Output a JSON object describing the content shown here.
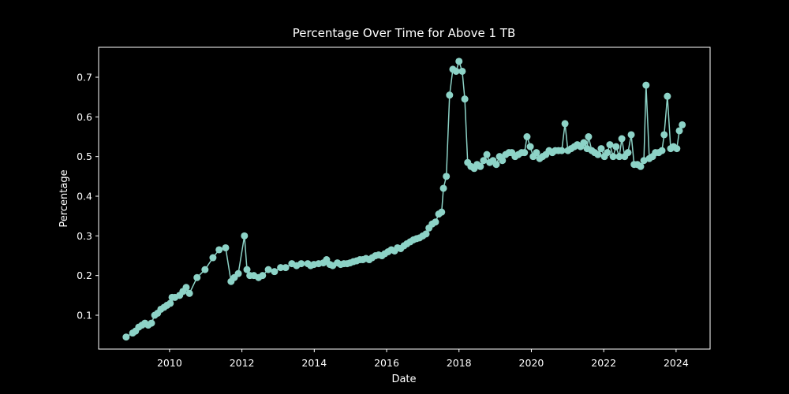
{
  "chart_data": {
    "type": "line",
    "title": "Percentage Over Time for Above 1 TB",
    "xlabel": "Date",
    "ylabel": "Percentage",
    "xlim": [
      2008.04,
      2024.94
    ],
    "xticks": [
      2010,
      2012,
      2014,
      2016,
      2018,
      2020,
      2022,
      2024
    ],
    "ylim": [
      0.0146,
      0.7755
    ],
    "yticks": [
      0.1,
      0.2,
      0.3,
      0.4,
      0.5,
      0.6,
      0.7
    ],
    "grid": false,
    "marker": "o",
    "series": [
      {
        "name": "Above 1 TB",
        "color": "#8dd3c7",
        "x": [
          2008.8,
          2008.98,
          2009.06,
          2009.15,
          2009.24,
          2009.32,
          2009.41,
          2009.5,
          2009.59,
          2009.67,
          2009.76,
          2009.85,
          2009.93,
          2010.02,
          2010.07,
          2010.15,
          2010.28,
          2010.37,
          2010.46,
          2010.55,
          2010.76,
          2010.98,
          2011.2,
          2011.37,
          2011.55,
          2011.7,
          2011.79,
          2011.9,
          2012.07,
          2012.14,
          2012.22,
          2012.33,
          2012.46,
          2012.57,
          2012.73,
          2012.9,
          2013.07,
          2013.21,
          2013.38,
          2013.51,
          2013.64,
          2013.82,
          2013.9,
          2013.99,
          2014.12,
          2014.25,
          2014.34,
          2014.43,
          2014.51,
          2014.64,
          2014.73,
          2014.82,
          2014.91,
          2014.99,
          2015.08,
          2015.17,
          2015.26,
          2015.34,
          2015.43,
          2015.52,
          2015.6,
          2015.69,
          2015.78,
          2015.87,
          2015.95,
          2016.04,
          2016.13,
          2016.22,
          2016.3,
          2016.39,
          2016.48,
          2016.56,
          2016.65,
          2016.74,
          2016.83,
          2016.91,
          2017.0,
          2017.09,
          2017.17,
          2017.26,
          2017.35,
          2017.44,
          2017.52,
          2017.57,
          2017.65,
          2017.74,
          2017.83,
          2017.92,
          2018.0,
          2018.09,
          2018.16,
          2018.24,
          2018.33,
          2018.42,
          2018.5,
          2018.59,
          2018.68,
          2018.77,
          2018.85,
          2018.94,
          2019.03,
          2019.12,
          2019.2,
          2019.29,
          2019.38,
          2019.46,
          2019.55,
          2019.64,
          2019.73,
          2019.81,
          2019.88,
          2019.97,
          2020.05,
          2020.14,
          2020.23,
          2020.31,
          2020.4,
          2020.49,
          2020.58,
          2020.66,
          2020.75,
          2020.84,
          2020.93,
          2021.01,
          2021.1,
          2021.19,
          2021.27,
          2021.36,
          2021.45,
          2021.54,
          2021.58,
          2021.67,
          2021.75,
          2021.84,
          2021.93,
          2022.02,
          2022.1,
          2022.17,
          2022.26,
          2022.34,
          2022.43,
          2022.5,
          2022.58,
          2022.67,
          2022.76,
          2022.84,
          2022.93,
          2023.02,
          2023.11,
          2023.17,
          2023.26,
          2023.35,
          2023.43,
          2023.52,
          2023.61,
          2023.67,
          2023.76,
          2023.85,
          2023.93,
          2024.02,
          2024.09,
          2024.17
        ],
        "values": [
          0.045,
          0.055,
          0.06,
          0.07,
          0.075,
          0.08,
          0.075,
          0.08,
          0.1,
          0.105,
          0.115,
          0.12,
          0.125,
          0.13,
          0.145,
          0.145,
          0.15,
          0.16,
          0.17,
          0.155,
          0.195,
          0.215,
          0.245,
          0.265,
          0.27,
          0.185,
          0.195,
          0.205,
          0.3,
          0.215,
          0.2,
          0.2,
          0.195,
          0.2,
          0.215,
          0.21,
          0.22,
          0.22,
          0.23,
          0.225,
          0.23,
          0.23,
          0.225,
          0.228,
          0.23,
          0.232,
          0.24,
          0.228,
          0.225,
          0.232,
          0.228,
          0.23,
          0.23,
          0.232,
          0.235,
          0.237,
          0.24,
          0.24,
          0.243,
          0.24,
          0.245,
          0.25,
          0.252,
          0.25,
          0.255,
          0.26,
          0.265,
          0.262,
          0.27,
          0.268,
          0.275,
          0.28,
          0.285,
          0.29,
          0.293,
          0.295,
          0.3,
          0.305,
          0.32,
          0.33,
          0.335,
          0.355,
          0.36,
          0.42,
          0.45,
          0.655,
          0.72,
          0.715,
          0.74,
          0.715,
          0.645,
          0.485,
          0.475,
          0.47,
          0.48,
          0.475,
          0.49,
          0.505,
          0.485,
          0.49,
          0.48,
          0.5,
          0.49,
          0.505,
          0.51,
          0.51,
          0.5,
          0.505,
          0.51,
          0.51,
          0.55,
          0.525,
          0.5,
          0.51,
          0.495,
          0.5,
          0.505,
          0.515,
          0.51,
          0.515,
          0.515,
          0.515,
          0.583,
          0.515,
          0.52,
          0.525,
          0.53,
          0.525,
          0.535,
          0.52,
          0.55,
          0.515,
          0.51,
          0.505,
          0.52,
          0.5,
          0.51,
          0.53,
          0.5,
          0.525,
          0.5,
          0.545,
          0.5,
          0.51,
          0.555,
          0.48,
          0.48,
          0.475,
          0.49,
          0.68,
          0.495,
          0.5,
          0.51,
          0.51,
          0.515,
          0.555,
          0.652,
          0.52,
          0.525,
          0.52,
          0.565,
          0.58
        ]
      }
    ]
  }
}
